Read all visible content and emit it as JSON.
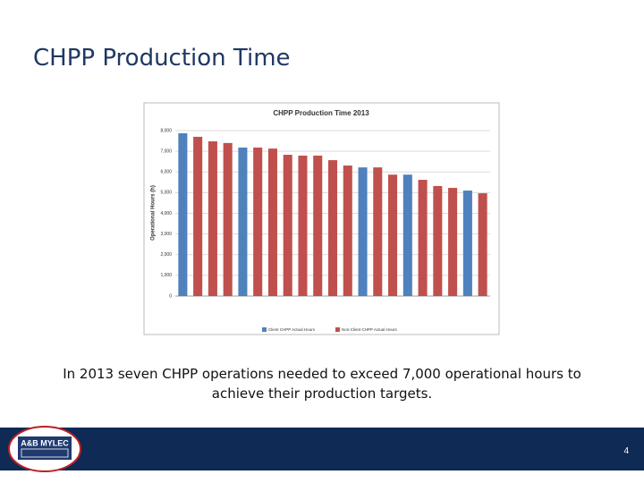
{
  "slide_title": "CHPP Production Time",
  "caption": "In 2013 seven CHPP operations needed to exceed 7,000 operational hours to achieve their production targets.",
  "logo_text": "A&B MYLEC",
  "page_number": "4",
  "chart_data": {
    "type": "bar",
    "title": "CHPP Production Time 2013",
    "y_label": "Operational Hours (h)",
    "categories": [
      null,
      null,
      null,
      null,
      null,
      null,
      null,
      null,
      null,
      null,
      null,
      null,
      null,
      null,
      null,
      null,
      null,
      null,
      null,
      null,
      null
    ],
    "series": [
      {
        "name": "Client CHPP Actual Hours",
        "color": "#4f81bd",
        "values": [
          7870,
          null,
          null,
          null,
          7180,
          null,
          null,
          null,
          null,
          null,
          null,
          null,
          6220,
          null,
          null,
          5870,
          null,
          null,
          null,
          5100,
          null
        ]
      },
      {
        "name": "Non-Client CHPP Actual Hours",
        "color": "#c0504d",
        "values": [
          null,
          7700,
          7480,
          7400,
          null,
          7180,
          7130,
          6830,
          6790,
          6790,
          6570,
          6310,
          null,
          6220,
          5870,
          null,
          5620,
          5320,
          5230,
          null,
          4970
        ]
      }
    ],
    "ylim": [
      0,
      8000
    ],
    "yticks": [
      0,
      {
        "value": 1000,
        "label": "1,000"
      },
      {
        "value": 2000,
        "label": "2,000"
      },
      {
        "value": 3000,
        "label": "3,000"
      },
      {
        "value": 4000,
        "label": "4,000"
      },
      {
        "value": 5000,
        "label": "5,000"
      },
      {
        "value": 6000,
        "label": "6,000"
      },
      {
        "value": 7000,
        "label": "7,000"
      },
      {
        "value": 8000,
        "label": "8,000"
      }
    ],
    "grid": true,
    "legend": "bottom"
  }
}
